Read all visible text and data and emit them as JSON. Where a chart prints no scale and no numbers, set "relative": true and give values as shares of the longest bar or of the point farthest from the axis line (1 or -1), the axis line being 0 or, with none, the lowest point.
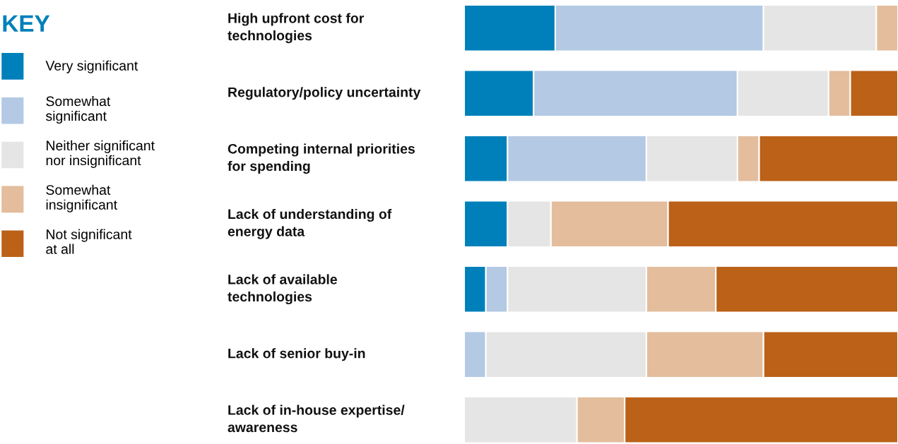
{
  "chart_data": {
    "type": "bar",
    "orientation": "horizontal",
    "stacked": true,
    "relative": true,
    "legend": "left",
    "legend_title": "KEY",
    "categories": [
      "High upfront cost for\ntechnologies",
      "Regulatory/policy uncertainty",
      "Competing internal priorities\nfor spending",
      "Lack of understanding of\nenergy data",
      "Lack of available\ntechnologies",
      "Lack of senior buy-in",
      "Lack of in-house expertise/\nawareness"
    ],
    "series": [
      {
        "name": "Very significant",
        "color": "#0080ba",
        "values": [
          0.21,
          0.16,
          0.1,
          0.1,
          0.05,
          0,
          0
        ]
      },
      {
        "name": "Somewhat\nsignificant",
        "color": "#b3c9e4",
        "values": [
          0.48,
          0.47,
          0.32,
          0,
          0.05,
          0.05,
          0
        ]
      },
      {
        "name": "Neither significant\nnor insignificant",
        "color": "#e5e5e5",
        "values": [
          0.26,
          0.21,
          0.21,
          0.1,
          0.32,
          0.37,
          0.26
        ]
      },
      {
        "name": "Somewhat\ninsignificant",
        "color": "#e3bd9c",
        "values": [
          0.05,
          0.05,
          0.05,
          0.27,
          0.16,
          0.27,
          0.11
        ]
      },
      {
        "name": "Not significant\nat all",
        "color": "#bb6118",
        "values": [
          0,
          0.11,
          0.32,
          0.53,
          0.42,
          0.31,
          0.63
        ]
      }
    ]
  }
}
